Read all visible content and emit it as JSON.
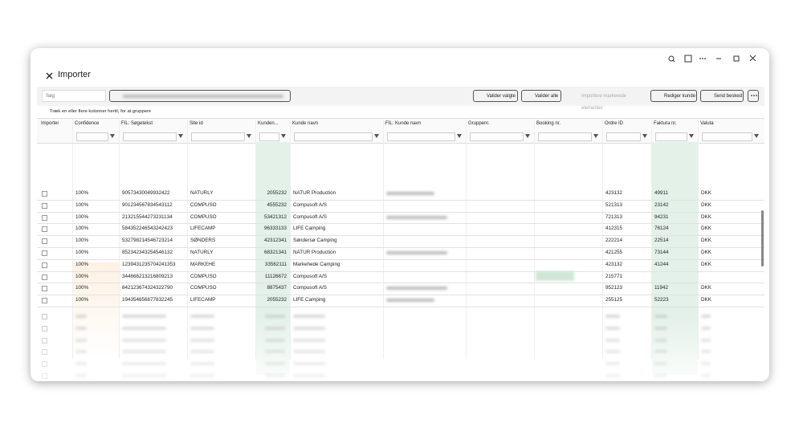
{
  "window": {
    "title": "Importer"
  },
  "toolbar": {
    "search_placeholder": "Søg",
    "buttons": [
      "Valider valgte",
      "Valider alle",
      "Importere markerede elementer",
      "Rediger kunde",
      "Send besked"
    ]
  },
  "group_hint": "Træk en eller flere kolonner hertil, for at gruppere",
  "table": {
    "columns": [
      "Importer",
      "Confidence",
      "FIL: Søgetekst",
      "Site id",
      "Kunden...",
      "Kunde navn",
      "FIL: Kunde navn",
      "Gruppenr.",
      "Booking nr.",
      "Ordre ID",
      "Faktura nr.",
      "Valuta"
    ],
    "rows": [
      [
        "100%",
        "90573430049932422",
        "NATURLY",
        "2055232",
        "NATUR Production",
        null,
        null,
        null,
        "423132",
        "49911",
        "DKK"
      ],
      [
        "100%",
        "901234567834543112",
        "COMPUSO",
        "4555232",
        "Compusoft A/S",
        null,
        null,
        null,
        "521313",
        "23142",
        "DKK"
      ],
      [
        "100%",
        "213215544273231134",
        "COMPUSO",
        "53421312",
        "Compusoft A/S",
        null,
        null,
        null,
        "721313",
        "94231",
        "DKK"
      ],
      [
        "100%",
        "584352246543242423",
        "LIFECAMP",
        "96333133",
        "LIFE Camping",
        null,
        null,
        null,
        "412315",
        "76124",
        "DKK"
      ],
      [
        "100%",
        "532798214546723214",
        "SØNDERS",
        "42312341",
        "Søndersø Camping",
        null,
        null,
        null,
        "222214",
        "22514",
        "DKK"
      ],
      [
        "100%",
        "852342343254546132",
        "NATURLY",
        "68321341",
        "NATUR Production",
        null,
        null,
        null,
        "421255",
        "73144",
        "DKK"
      ],
      [
        "100%",
        "1239431235704241353",
        "MARKEHE",
        "33562111",
        "Markehede Camping",
        null,
        null,
        null,
        "423132",
        "41244",
        "DKK"
      ],
      [
        "100%",
        "344666213216809213",
        "COMPUSO",
        "11126672",
        "Compusoft A/S",
        null,
        null,
        null,
        "215771",
        null,
        null
      ],
      [
        "100%",
        "842123674324322790",
        "COMPUSO",
        "8875437",
        "Compusoft A/S",
        null,
        null,
        null,
        "952123",
        "11942",
        "DKK"
      ],
      [
        "100%",
        "194354656877832245",
        "LIFECAMP",
        "2055232",
        "LIFE Camping",
        null,
        null,
        null,
        "255125",
        "52223",
        "DKK"
      ]
    ]
  }
}
